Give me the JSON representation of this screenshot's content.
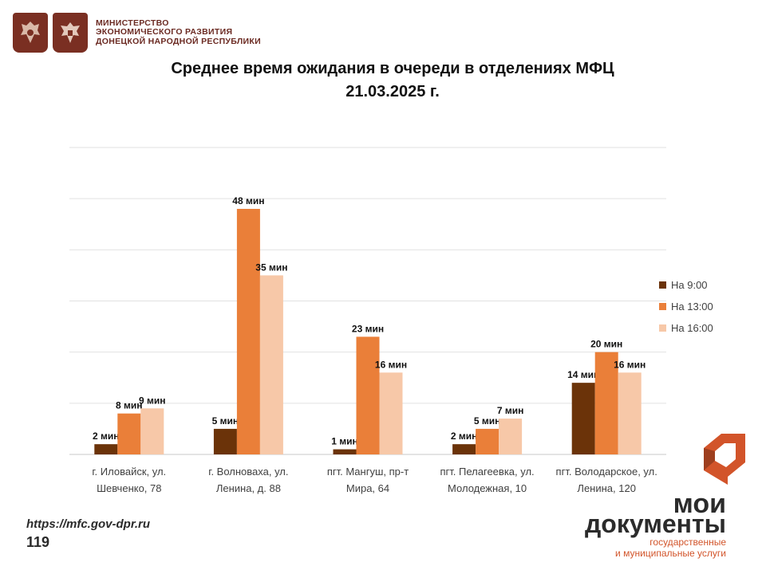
{
  "header": {
    "ministry_lines": [
      "МИНИСТЕРСТВО",
      "ЭКОНОМИЧЕСКОГО РАЗВИТИЯ",
      "ДОНЕЦКОЙ НАРОДНОЙ РЕСПУБЛИКИ"
    ]
  },
  "title_lines": [
    "Среднее время ожидания в очереди в отделениях МФЦ",
    "21.03.2025 г."
  ],
  "chart_data": {
    "type": "bar",
    "categories": [
      [
        "г. Иловайск, ул.",
        "Шевченко, 78"
      ],
      [
        "г. Волноваха, ул.",
        "Ленина, д. 88"
      ],
      [
        "пгт. Мангуш, пр-т",
        "Мира, 64"
      ],
      [
        "пгт. Пелагеевка, ул.",
        "Молодежная, 10"
      ],
      [
        "пгт. Володарское, ул.",
        "Ленина, 120"
      ]
    ],
    "series": [
      {
        "name": "На 9:00",
        "values": [
          2,
          5,
          1,
          2,
          14
        ],
        "labels": [
          "2 мин",
          "5 мин",
          "1 мин",
          "2 мин",
          "14 мин"
        ],
        "color": "#6b3309"
      },
      {
        "name": "На 13:00",
        "values": [
          8,
          48,
          23,
          5,
          20
        ],
        "labels": [
          "8 мин",
          "48 мин",
          "23 мин",
          "5 мин",
          "20 мин"
        ],
        "color": "#ea7f39"
      },
      {
        "name": "На 16:00",
        "values": [
          9,
          35,
          16,
          7,
          16
        ],
        "labels": [
          "9 мин",
          "35 мин",
          "16 мин",
          "7 мин",
          "16 мин"
        ],
        "color": "#f7c8a8"
      }
    ],
    "ylim": [
      0,
      60
    ],
    "grid": true,
    "legend": "right"
  },
  "footer": {
    "url": "https://mfc.gov-dpr.ru",
    "page": "119"
  },
  "brand": {
    "line1": "мои",
    "line2": "документы",
    "line3": "государственные",
    "line4": "и муниципальные услуги",
    "accent": "#d2542a"
  }
}
